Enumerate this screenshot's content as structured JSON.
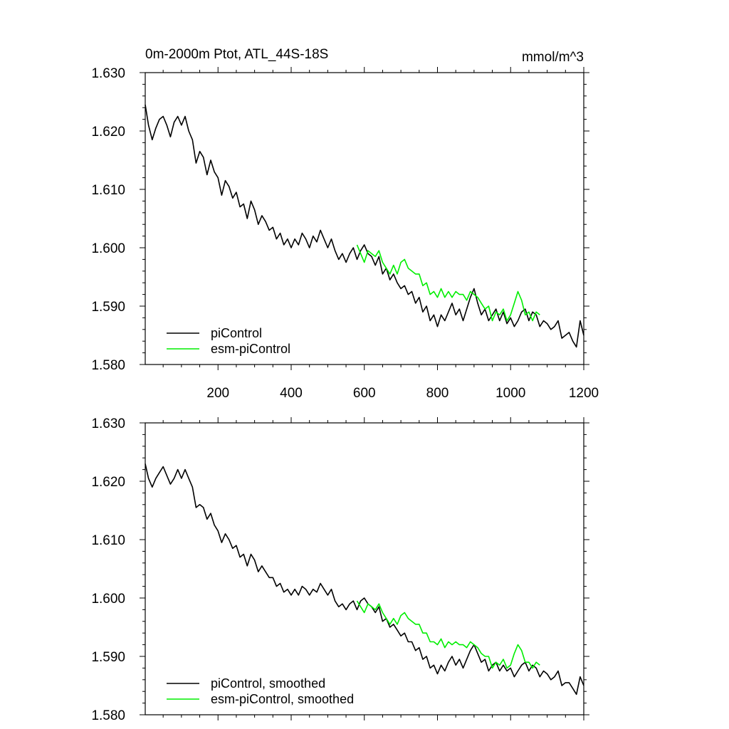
{
  "figure": {
    "title": "0m-2000m Ptot, ATL_44S-18S",
    "units": "mmol/m^3"
  },
  "colors": {
    "pi_control": "#000000",
    "esm_pi_control": "#00ee00"
  },
  "chart_data": [
    {
      "type": "line",
      "title": "0m-2000m Ptot, ATL_44S-18S",
      "units_label": "mmol/m^3",
      "xlabel": "",
      "ylabel": "",
      "xlim": [
        1,
        1200
      ],
      "ylim": [
        1.58,
        1.63
      ],
      "xticks": [
        200,
        400,
        600,
        800,
        1000,
        1200
      ],
      "xtick_labels": [
        "200",
        "400",
        "600",
        "800",
        "1000",
        "1200"
      ],
      "yticks": [
        1.58,
        1.59,
        1.6,
        1.61,
        1.62,
        1.63
      ],
      "ytick_labels": [
        "1.580",
        "1.590",
        "1.600",
        "1.610",
        "1.620",
        "1.630"
      ],
      "legend_position": "bottom-left",
      "series": [
        {
          "name": "piControl",
          "color": "#000000",
          "x": [
            1,
            10,
            20,
            30,
            40,
            50,
            60,
            70,
            80,
            90,
            100,
            110,
            120,
            130,
            140,
            150,
            160,
            170,
            180,
            190,
            200,
            210,
            220,
            230,
            240,
            250,
            260,
            270,
            280,
            290,
            300,
            310,
            320,
            330,
            340,
            350,
            360,
            370,
            380,
            390,
            400,
            410,
            420,
            430,
            440,
            450,
            460,
            470,
            480,
            490,
            500,
            510,
            520,
            530,
            540,
            550,
            560,
            570,
            580,
            590,
            600,
            610,
            620,
            630,
            640,
            650,
            660,
            670,
            680,
            690,
            700,
            710,
            720,
            730,
            740,
            750,
            760,
            770,
            780,
            790,
            800,
            810,
            820,
            830,
            840,
            850,
            860,
            870,
            880,
            890,
            900,
            910,
            920,
            930,
            940,
            950,
            960,
            970,
            980,
            990,
            1000,
            1010,
            1020,
            1030,
            1040,
            1050,
            1060,
            1070,
            1080,
            1090,
            1100,
            1110,
            1120,
            1130,
            1140,
            1150,
            1160,
            1170,
            1180,
            1190,
            1200
          ],
          "values": [
            1.6245,
            1.621,
            1.6185,
            1.6205,
            1.622,
            1.6225,
            1.621,
            1.619,
            1.6215,
            1.6225,
            1.621,
            1.6225,
            1.62,
            1.6185,
            1.6145,
            1.6165,
            1.6155,
            1.6125,
            1.615,
            1.613,
            1.612,
            1.609,
            1.6115,
            1.6105,
            1.6085,
            1.6095,
            1.607,
            1.6075,
            1.605,
            1.608,
            1.6065,
            1.604,
            1.6055,
            1.6045,
            1.603,
            1.6035,
            1.6015,
            1.6025,
            1.6005,
            1.6015,
            1.6,
            1.6015,
            1.6005,
            1.6025,
            1.6015,
            1.6,
            1.602,
            1.601,
            1.603,
            1.6015,
            1.6,
            1.6015,
            1.5995,
            1.598,
            1.599,
            1.5975,
            1.599,
            1.6,
            1.598,
            1.5995,
            1.6005,
            1.599,
            1.5985,
            1.597,
            1.5985,
            1.5955,
            1.5965,
            1.5945,
            1.5955,
            1.594,
            1.593,
            1.5935,
            1.592,
            1.5925,
            1.5905,
            1.5915,
            1.589,
            1.59,
            1.5875,
            1.5885,
            1.5865,
            1.5885,
            1.5875,
            1.589,
            1.5905,
            1.5885,
            1.5895,
            1.5875,
            1.5895,
            1.5915,
            1.593,
            1.5905,
            1.5885,
            1.5895,
            1.5875,
            1.5885,
            1.5895,
            1.5875,
            1.589,
            1.587,
            1.588,
            1.5865,
            1.5875,
            1.589,
            1.5895,
            1.5875,
            1.589,
            1.5885,
            1.5865,
            1.5875,
            1.587,
            1.586,
            1.5865,
            1.5875,
            1.5845,
            1.585,
            1.5855,
            1.584,
            1.583,
            1.5875,
            1.585
          ]
        },
        {
          "name": "esm-piControl",
          "color": "#00ee00",
          "x": [
            580,
            590,
            600,
            610,
            620,
            630,
            640,
            650,
            660,
            670,
            680,
            690,
            700,
            710,
            720,
            730,
            740,
            750,
            760,
            770,
            780,
            790,
            800,
            810,
            820,
            830,
            840,
            850,
            860,
            870,
            880,
            890,
            900,
            910,
            920,
            930,
            940,
            950,
            960,
            970,
            980,
            990,
            1000,
            1010,
            1020,
            1030,
            1040,
            1050,
            1060,
            1070,
            1080
          ],
          "values": [
            1.6005,
            1.599,
            1.5975,
            1.5995,
            1.599,
            1.5985,
            1.5995,
            1.5975,
            1.5965,
            1.5955,
            1.597,
            1.5955,
            1.5975,
            1.598,
            1.5965,
            1.596,
            1.5955,
            1.5955,
            1.5935,
            1.594,
            1.592,
            1.5925,
            1.5915,
            1.593,
            1.5915,
            1.5925,
            1.5915,
            1.5925,
            1.592,
            1.592,
            1.591,
            1.5925,
            1.592,
            1.5915,
            1.5905,
            1.5895,
            1.59,
            1.5875,
            1.589,
            1.5885,
            1.5895,
            1.5875,
            1.5885,
            1.5905,
            1.5925,
            1.591,
            1.5885,
            1.589,
            1.5875,
            1.589,
            1.5885
          ]
        }
      ]
    },
    {
      "type": "line",
      "title": "",
      "xlabel": "",
      "ylabel": "",
      "xlim": [
        1,
        1200
      ],
      "ylim": [
        1.58,
        1.63
      ],
      "xticks": [
        200,
        400,
        600,
        800,
        1000,
        1200
      ],
      "xtick_labels": [],
      "yticks": [
        1.58,
        1.59,
        1.6,
        1.61,
        1.62,
        1.63
      ],
      "ytick_labels": [
        "1.580",
        "1.590",
        "1.600",
        "1.610",
        "1.620",
        "1.630"
      ],
      "legend_position": "bottom-left",
      "series": [
        {
          "name": "piControl, smoothed",
          "color": "#000000",
          "x": [
            1,
            10,
            20,
            30,
            40,
            50,
            60,
            70,
            80,
            90,
            100,
            110,
            120,
            130,
            140,
            150,
            160,
            170,
            180,
            190,
            200,
            210,
            220,
            230,
            240,
            250,
            260,
            270,
            280,
            290,
            300,
            310,
            320,
            330,
            340,
            350,
            360,
            370,
            380,
            390,
            400,
            410,
            420,
            430,
            440,
            450,
            460,
            470,
            480,
            490,
            500,
            510,
            520,
            530,
            540,
            550,
            560,
            570,
            580,
            590,
            600,
            610,
            620,
            630,
            640,
            650,
            660,
            670,
            680,
            690,
            700,
            710,
            720,
            730,
            740,
            750,
            760,
            770,
            780,
            790,
            800,
            810,
            820,
            830,
            840,
            850,
            860,
            870,
            880,
            890,
            900,
            910,
            920,
            930,
            940,
            950,
            960,
            970,
            980,
            990,
            1000,
            1010,
            1020,
            1030,
            1040,
            1050,
            1060,
            1070,
            1080,
            1090,
            1100,
            1110,
            1120,
            1130,
            1140,
            1150,
            1160,
            1170,
            1180,
            1190,
            1200
          ],
          "values": [
            1.623,
            1.6205,
            1.619,
            1.6205,
            1.6215,
            1.6225,
            1.621,
            1.6195,
            1.6205,
            1.622,
            1.6205,
            1.622,
            1.6205,
            1.619,
            1.6155,
            1.616,
            1.6155,
            1.6135,
            1.6145,
            1.6125,
            1.6115,
            1.6095,
            1.611,
            1.61,
            1.6085,
            1.609,
            1.607,
            1.6075,
            1.6055,
            1.6075,
            1.6065,
            1.6045,
            1.6055,
            1.6045,
            1.6035,
            1.6035,
            1.602,
            1.6025,
            1.601,
            1.6015,
            1.6005,
            1.6015,
            1.6005,
            1.602,
            1.6015,
            1.6005,
            1.6015,
            1.601,
            1.6025,
            1.6015,
            1.6005,
            1.6015,
            1.5995,
            1.5985,
            1.599,
            1.598,
            1.599,
            1.5995,
            1.598,
            1.5995,
            1.6,
            1.599,
            1.5985,
            1.5975,
            1.5985,
            1.596,
            1.5965,
            1.595,
            1.5955,
            1.5945,
            1.5935,
            1.594,
            1.5925,
            1.5925,
            1.591,
            1.5915,
            1.5895,
            1.59,
            1.588,
            1.5885,
            1.587,
            1.5885,
            1.5875,
            1.589,
            1.59,
            1.5885,
            1.5895,
            1.588,
            1.5895,
            1.591,
            1.592,
            1.5905,
            1.589,
            1.5895,
            1.5875,
            1.5885,
            1.589,
            1.5875,
            1.5885,
            1.5875,
            1.588,
            1.5865,
            1.5875,
            1.5885,
            1.589,
            1.5875,
            1.5885,
            1.588,
            1.5865,
            1.5875,
            1.587,
            1.586,
            1.5865,
            1.5875,
            1.585,
            1.5855,
            1.5855,
            1.5845,
            1.5835,
            1.5865,
            1.585
          ]
        },
        {
          "name": "esm-piControl, smoothed",
          "color": "#00ee00",
          "x": [
            580,
            590,
            600,
            610,
            620,
            630,
            640,
            650,
            660,
            670,
            680,
            690,
            700,
            710,
            720,
            730,
            740,
            750,
            760,
            770,
            780,
            790,
            800,
            810,
            820,
            830,
            840,
            850,
            860,
            870,
            880,
            890,
            900,
            910,
            920,
            930,
            940,
            950,
            960,
            970,
            980,
            990,
            1000,
            1010,
            1020,
            1030,
            1040,
            1050,
            1060,
            1070,
            1080
          ],
          "values": [
            1.5995,
            1.5985,
            1.5975,
            1.599,
            1.5985,
            1.598,
            1.599,
            1.5975,
            1.5965,
            1.5955,
            1.5965,
            1.5955,
            1.597,
            1.5975,
            1.5965,
            1.596,
            1.5955,
            1.5955,
            1.594,
            1.594,
            1.5925,
            1.5925,
            1.592,
            1.593,
            1.5915,
            1.5925,
            1.592,
            1.5925,
            1.592,
            1.592,
            1.5915,
            1.5925,
            1.592,
            1.5915,
            1.5905,
            1.59,
            1.59,
            1.588,
            1.589,
            1.5885,
            1.5895,
            1.588,
            1.5885,
            1.5905,
            1.592,
            1.591,
            1.589,
            1.589,
            1.588,
            1.589,
            1.5885
          ]
        }
      ]
    }
  ]
}
